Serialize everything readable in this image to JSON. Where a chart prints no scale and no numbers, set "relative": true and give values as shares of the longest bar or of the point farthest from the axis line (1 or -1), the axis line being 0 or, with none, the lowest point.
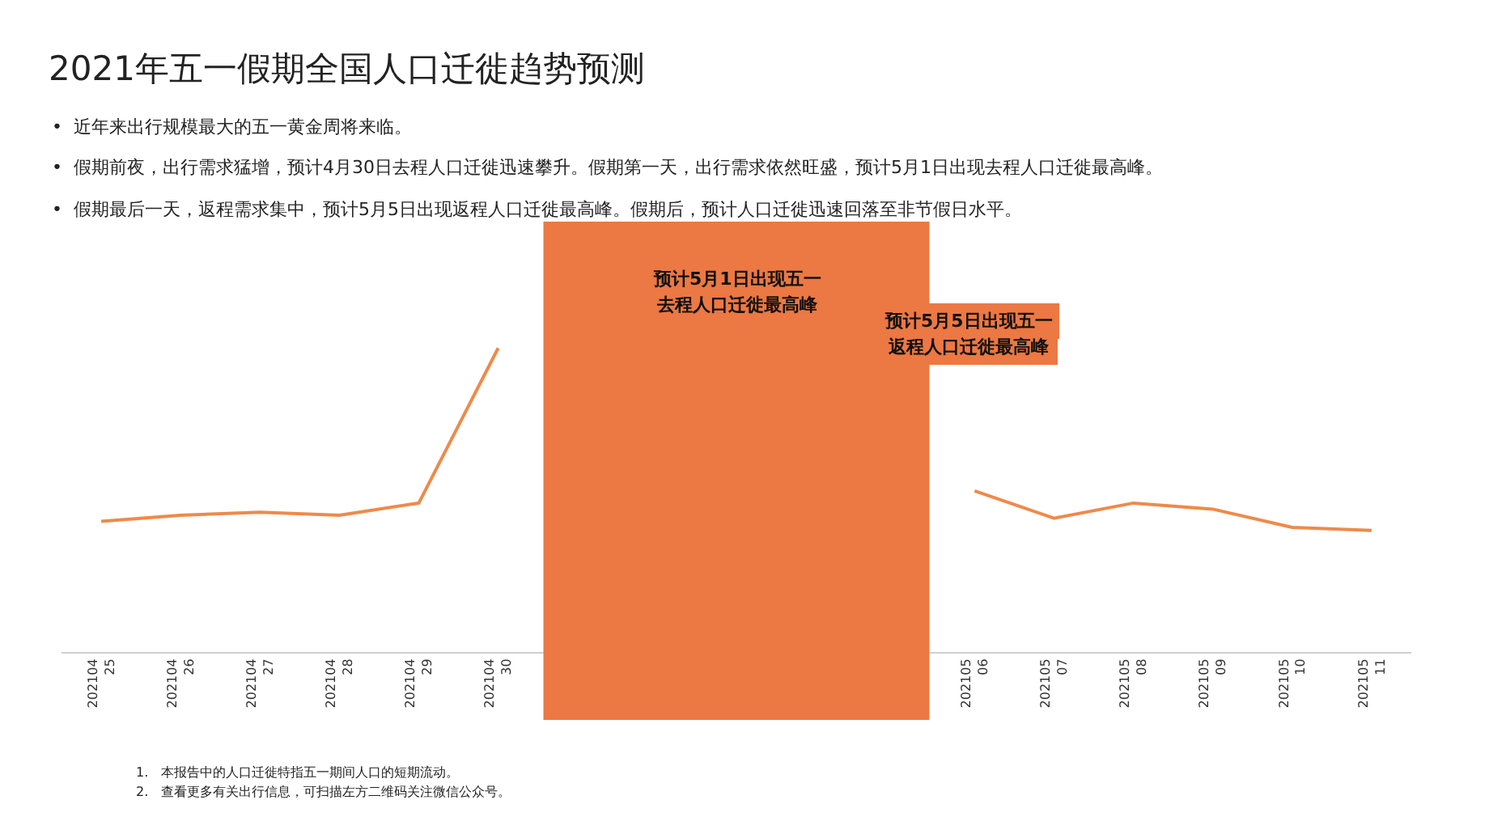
{
  "chart_data": {
    "type": "line",
    "relative": true,
    "title": "2021年五一假期全国人口迁徙趋势预测",
    "subtitle": "•  近年来出行规模最大的五一黄金周将来临。\n•  假期前夜，出行需求猛增，预计4月30日去程人口迁徙迅速攀升。假期第一天，出行需求依然旺盛，预计5月1日出现去程人口迁徙最高峰。\n•  假期最后一天，返程需求集中，预计5月5日出现返程人口迁徙最高峰。假期后，预计人口迁徙迅速回落至非节假日水平。",
    "x": [
      "2021-04-25",
      "2021-04-26",
      "2021-04-27",
      "2021-04-28",
      "2021-04-29",
      "2021-04-30",
      "2021-05-01",
      "2021-05-02",
      "2021-05-03",
      "2021-05-04",
      "2021-05-05",
      "2021-05-06",
      "2021-05-07",
      "2021-05-08",
      "2021-05-09",
      "2021-05-10",
      "2021-05-11"
    ],
    "series": [
      {
        "color": "#ee8a4a",
        "values": [
          0.43,
          0.45,
          0.46,
          0.45,
          0.49,
          1,
          null,
          null,
          null,
          null,
          null,
          0.53,
          0.44,
          0.49,
          0.47,
          0.41,
          0.4
        ]
      }
    ],
    "xlim": [
      "2021-04-24T12:00",
      "2021-05-11T12:00"
    ],
    "xticks": [
      {
        "value": "2021-04-25",
        "label": "202104\n25"
      },
      {
        "value": "2021-04-26",
        "label": "202104\n26"
      },
      {
        "value": "2021-04-27",
        "label": "202104\n27"
      },
      {
        "value": "2021-04-28",
        "label": "202104\n28"
      },
      {
        "value": "2021-04-29",
        "label": "202104\n29"
      },
      {
        "value": "2021-04-30",
        "label": "202104\n30"
      },
      {
        "value": "2021-05-06",
        "label": "202105\n06"
      },
      {
        "value": "2021-05-07",
        "label": "202105\n07"
      },
      {
        "value": "2021-05-08",
        "label": "202105\n08"
      },
      {
        "value": "2021-05-09",
        "label": "202105\n09"
      },
      {
        "value": "2021-05-10",
        "label": "202105\n10"
      },
      {
        "value": "2021-05-11",
        "label": "202105\n11"
      }
    ],
    "bands": [
      {
        "axis": "x",
        "from": "2021-04-30T13:40",
        "to": "2021-05-05T10:20",
        "color": "#ec7843"
      }
    ],
    "annotations": [
      "预计5月1日出现五一",
      "去程人口迁徙最高峰",
      "预计5月5日出现五一",
      "返程人口迁徙最高峰",
      "1.   本报告中的人口迁徙特指五一期间人口的短期流动。",
      "2.   查看更多有关出行信息，可扫描左方二维码关注微信公众号。"
    ],
    "legend": false,
    "marker": "none",
    "line_style": "solid"
  }
}
